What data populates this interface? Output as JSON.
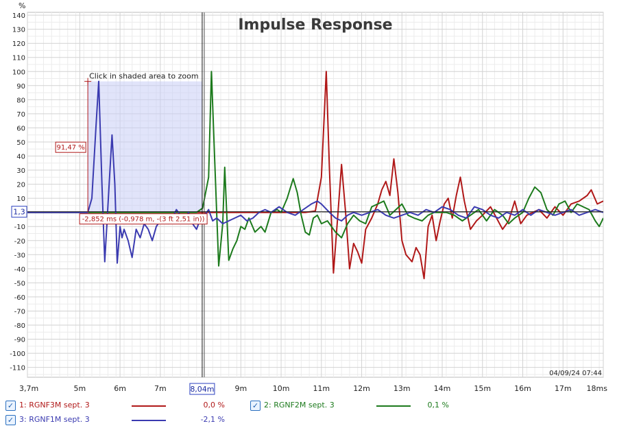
{
  "chart_data": {
    "type": "line",
    "title": "Impulse Response",
    "ylabel": "%",
    "x_unit": "ms",
    "xlim": [
      3.7,
      18
    ],
    "ylim": [
      -117,
      142
    ],
    "y_ticks": [
      140,
      130,
      120,
      110,
      100,
      90,
      80,
      70,
      60,
      50,
      40,
      30,
      20,
      10,
      -10,
      -20,
      -30,
      -40,
      -50,
      -60,
      -70,
      -80,
      -90,
      -100,
      -110
    ],
    "x_ticks": [
      {
        "value": 3.7,
        "label": "3,7m"
      },
      {
        "value": 5,
        "label": "5m"
      },
      {
        "value": 6,
        "label": "6m"
      },
      {
        "value": 7,
        "label": "7m"
      },
      {
        "value": 9,
        "label": "9m"
      },
      {
        "value": 10,
        "label": "10m"
      },
      {
        "value": 11,
        "label": "11m"
      },
      {
        "value": 12,
        "label": "12m"
      },
      {
        "value": 13,
        "label": "13m"
      },
      {
        "value": 14,
        "label": "14m"
      },
      {
        "value": 15,
        "label": "15m"
      },
      {
        "value": 16,
        "label": "16m"
      },
      {
        "value": 17,
        "label": "17m"
      },
      {
        "value": 18,
        "label": "18ms"
      }
    ],
    "timestamp": "04/09/24 07:44",
    "cursor": {
      "x": 8.04,
      "x_label": "8,04m",
      "y_label": "1,3",
      "zoom_hint": "Click in shaded area to zoom",
      "zoom_region": {
        "x": [
          5.2,
          8.04
        ],
        "y": [
          0,
          93
        ]
      },
      "delta_y_label": "91,47 %",
      "delta_x_label": "-2,852 ms (-0,978 m, -(3 ft 2,51 in))"
    },
    "series": [
      {
        "name": "1: RGNF3M sept. 3",
        "color": "#b01818",
        "legend_value": "0,0 %",
        "points": [
          [
            3.7,
            0
          ],
          [
            10.6,
            0
          ],
          [
            10.85,
            1
          ],
          [
            11.0,
            25
          ],
          [
            11.12,
            100
          ],
          [
            11.2,
            30
          ],
          [
            11.3,
            -43
          ],
          [
            11.4,
            -5
          ],
          [
            11.5,
            34
          ],
          [
            11.6,
            0
          ],
          [
            11.7,
            -40
          ],
          [
            11.8,
            -22
          ],
          [
            11.9,
            -28
          ],
          [
            12.0,
            -36
          ],
          [
            12.1,
            -12
          ],
          [
            12.25,
            -4
          ],
          [
            12.4,
            6
          ],
          [
            12.5,
            16
          ],
          [
            12.6,
            22
          ],
          [
            12.7,
            12
          ],
          [
            12.8,
            38
          ],
          [
            12.9,
            14
          ],
          [
            13.0,
            -20
          ],
          [
            13.1,
            -30
          ],
          [
            13.25,
            -35
          ],
          [
            13.35,
            -25
          ],
          [
            13.45,
            -30
          ],
          [
            13.55,
            -47
          ],
          [
            13.65,
            -10
          ],
          [
            13.75,
            -2
          ],
          [
            13.85,
            -20
          ],
          [
            13.95,
            -6
          ],
          [
            14.05,
            6
          ],
          [
            14.15,
            10
          ],
          [
            14.25,
            -4
          ],
          [
            14.35,
            12
          ],
          [
            14.45,
            25
          ],
          [
            14.55,
            8
          ],
          [
            14.7,
            -12
          ],
          [
            14.85,
            -6
          ],
          [
            15.0,
            -2
          ],
          [
            15.2,
            4
          ],
          [
            15.35,
            -4
          ],
          [
            15.5,
            -12
          ],
          [
            15.65,
            -6
          ],
          [
            15.8,
            8
          ],
          [
            15.95,
            -8
          ],
          [
            16.1,
            -2
          ],
          [
            16.25,
            0
          ],
          [
            16.4,
            2
          ],
          [
            16.6,
            -4
          ],
          [
            16.8,
            4
          ],
          [
            17.0,
            -2
          ],
          [
            17.2,
            6
          ],
          [
            17.4,
            8
          ],
          [
            17.6,
            12
          ],
          [
            17.7,
            16
          ],
          [
            17.85,
            6
          ],
          [
            18.0,
            8
          ]
        ]
      },
      {
        "name": "2: RGNF2M sept. 3",
        "color": "#1c7a1c",
        "legend_value": "0,1 %",
        "points": [
          [
            3.7,
            0
          ],
          [
            7.9,
            0
          ],
          [
            8.05,
            3
          ],
          [
            8.2,
            25
          ],
          [
            8.27,
            100
          ],
          [
            8.35,
            38
          ],
          [
            8.45,
            -38
          ],
          [
            8.55,
            -8
          ],
          [
            8.6,
            32
          ],
          [
            8.7,
            -34
          ],
          [
            8.8,
            -26
          ],
          [
            8.9,
            -20
          ],
          [
            9.0,
            -10
          ],
          [
            9.1,
            -12
          ],
          [
            9.2,
            -4
          ],
          [
            9.35,
            -14
          ],
          [
            9.5,
            -10
          ],
          [
            9.6,
            -14
          ],
          [
            9.75,
            0
          ],
          [
            9.9,
            2
          ],
          [
            10.0,
            0
          ],
          [
            10.15,
            10
          ],
          [
            10.3,
            24
          ],
          [
            10.4,
            14
          ],
          [
            10.5,
            -2
          ],
          [
            10.6,
            -14
          ],
          [
            10.7,
            -16
          ],
          [
            10.8,
            -4
          ],
          [
            10.9,
            -2
          ],
          [
            11.0,
            -8
          ],
          [
            11.15,
            -6
          ],
          [
            11.35,
            -14
          ],
          [
            11.5,
            -18
          ],
          [
            11.65,
            -8
          ],
          [
            11.8,
            -2
          ],
          [
            11.95,
            -6
          ],
          [
            12.1,
            -8
          ],
          [
            12.25,
            4
          ],
          [
            12.4,
            6
          ],
          [
            12.55,
            8
          ],
          [
            12.7,
            -2
          ],
          [
            12.85,
            2
          ],
          [
            13.0,
            6
          ],
          [
            13.15,
            -2
          ],
          [
            13.3,
            -4
          ],
          [
            13.5,
            -6
          ],
          [
            13.65,
            -2
          ],
          [
            13.8,
            0
          ],
          [
            13.95,
            0
          ],
          [
            14.1,
            0
          ],
          [
            14.3,
            -2
          ],
          [
            14.5,
            -6
          ],
          [
            14.7,
            -2
          ],
          [
            14.9,
            2
          ],
          [
            15.1,
            -6
          ],
          [
            15.3,
            2
          ],
          [
            15.5,
            -2
          ],
          [
            15.65,
            -8
          ],
          [
            15.8,
            -4
          ],
          [
            16.0,
            0
          ],
          [
            16.15,
            10
          ],
          [
            16.3,
            18
          ],
          [
            16.45,
            14
          ],
          [
            16.6,
            2
          ],
          [
            16.75,
            -2
          ],
          [
            16.9,
            6
          ],
          [
            17.05,
            8
          ],
          [
            17.2,
            0
          ],
          [
            17.35,
            6
          ],
          [
            17.5,
            4
          ],
          [
            17.65,
            2
          ],
          [
            17.8,
            -6
          ],
          [
            17.9,
            -10
          ],
          [
            18.0,
            -4
          ]
        ]
      },
      {
        "name": "3: RGNF1M sept. 3",
        "color": "#3a3ab0",
        "legend_value": "-2,1 %",
        "points": [
          [
            3.7,
            0
          ],
          [
            5.2,
            0
          ],
          [
            5.3,
            10
          ],
          [
            5.4,
            60
          ],
          [
            5.47,
            93
          ],
          [
            5.55,
            20
          ],
          [
            5.62,
            -35
          ],
          [
            5.68,
            -5
          ],
          [
            5.75,
            30
          ],
          [
            5.8,
            55
          ],
          [
            5.87,
            20
          ],
          [
            5.93,
            -36
          ],
          [
            6.0,
            -10
          ],
          [
            6.05,
            -18
          ],
          [
            6.1,
            -12
          ],
          [
            6.2,
            -20
          ],
          [
            6.3,
            -32
          ],
          [
            6.4,
            -12
          ],
          [
            6.5,
            -18
          ],
          [
            6.6,
            -8
          ],
          [
            6.7,
            -12
          ],
          [
            6.8,
            -20
          ],
          [
            6.9,
            -10
          ],
          [
            7.0,
            -6
          ],
          [
            7.1,
            -2
          ],
          [
            7.2,
            -8
          ],
          [
            7.3,
            -4
          ],
          [
            7.4,
            2
          ],
          [
            7.5,
            -2
          ],
          [
            7.6,
            -4
          ],
          [
            7.7,
            0
          ],
          [
            7.8,
            -8
          ],
          [
            7.9,
            -12
          ],
          [
            8.0,
            -4
          ],
          [
            8.1,
            -2
          ],
          [
            8.2,
            2
          ],
          [
            8.3,
            -6
          ],
          [
            8.4,
            -4
          ],
          [
            8.55,
            -8
          ],
          [
            8.7,
            -6
          ],
          [
            8.85,
            -4
          ],
          [
            9.0,
            -2
          ],
          [
            9.15,
            -6
          ],
          [
            9.3,
            -4
          ],
          [
            9.45,
            0
          ],
          [
            9.6,
            2
          ],
          [
            9.75,
            0
          ],
          [
            9.95,
            4
          ],
          [
            10.15,
            0
          ],
          [
            10.35,
            -2
          ],
          [
            10.55,
            2
          ],
          [
            10.75,
            6
          ],
          [
            10.9,
            8
          ],
          [
            11.0,
            6
          ],
          [
            11.2,
            0
          ],
          [
            11.35,
            -4
          ],
          [
            11.5,
            -6
          ],
          [
            11.65,
            -2
          ],
          [
            11.8,
            0
          ],
          [
            12.0,
            -2
          ],
          [
            12.2,
            0
          ],
          [
            12.4,
            2
          ],
          [
            12.6,
            -2
          ],
          [
            12.8,
            -4
          ],
          [
            13.0,
            -2
          ],
          [
            13.2,
            0
          ],
          [
            13.4,
            -2
          ],
          [
            13.6,
            2
          ],
          [
            13.8,
            0
          ],
          [
            14.0,
            4
          ],
          [
            14.2,
            2
          ],
          [
            14.4,
            -2
          ],
          [
            14.6,
            -4
          ],
          [
            14.8,
            4
          ],
          [
            15.0,
            2
          ],
          [
            15.2,
            -2
          ],
          [
            15.4,
            -4
          ],
          [
            15.6,
            0
          ],
          [
            15.8,
            -2
          ],
          [
            16.0,
            2
          ],
          [
            16.2,
            -2
          ],
          [
            16.4,
            2
          ],
          [
            16.6,
            0
          ],
          [
            16.8,
            -2
          ],
          [
            17.0,
            0
          ],
          [
            17.2,
            2
          ],
          [
            17.4,
            -2
          ],
          [
            17.6,
            0
          ],
          [
            17.8,
            2
          ],
          [
            18.0,
            0
          ]
        ]
      }
    ]
  }
}
